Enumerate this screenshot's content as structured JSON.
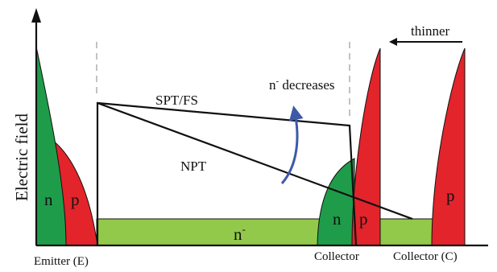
{
  "axis": {
    "ylabel": "Electric field"
  },
  "labels": {
    "spt_fs": "SPT/FS",
    "npt": "NPT",
    "n_minus_decreases": "n- decreases",
    "thinner": "thinner",
    "emitter": "Emitter (E)",
    "collector": "Collector",
    "collector_c": "Collector (C)",
    "n_left": "n",
    "p_left": "p",
    "n_minus_drift": "n-",
    "n_right": "n",
    "p_right": "p",
    "p_far": "p"
  },
  "colors": {
    "green": "#1f9c4a",
    "red": "#e3242b",
    "light_green": "#92c94a",
    "arrow_blue": "#3d5aa8",
    "line": "#111111",
    "dashed": "#999999"
  }
}
